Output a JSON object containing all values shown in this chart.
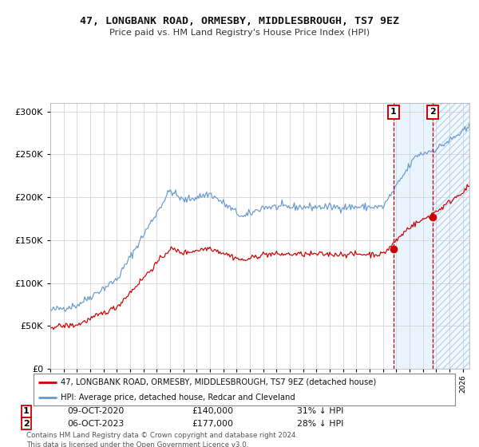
{
  "title": "47, LONGBANK ROAD, ORMESBY, MIDDLESBROUGH, TS7 9EZ",
  "subtitle": "Price paid vs. HM Land Registry's House Price Index (HPI)",
  "legend_line1": "47, LONGBANK ROAD, ORMESBY, MIDDLESBROUGH, TS7 9EZ (detached house)",
  "legend_line2": "HPI: Average price, detached house, Redcar and Cleveland",
  "footer": "Contains HM Land Registry data © Crown copyright and database right 2024.\nThis data is licensed under the Open Government Licence v3.0.",
  "transaction1_date": "09-OCT-2020",
  "transaction1_price": "£140,000",
  "transaction1_hpi": "31% ↓ HPI",
  "transaction2_date": "06-OCT-2023",
  "transaction2_price": "£177,000",
  "transaction2_hpi": "28% ↓ HPI",
  "marker1_x": 2020.78,
  "marker1_y_red": 140000,
  "marker2_x": 2023.76,
  "marker2_y_red": 177000,
  "red_color": "#cc0000",
  "blue_color": "#6699cc",
  "background_color": "#ffffff",
  "grid_color": "#cccccc",
  "ylim": [
    0,
    310000
  ],
  "xlim": [
    1995,
    2026.5
  ],
  "shade1_start": 2020.78,
  "shade1_end": 2023.76,
  "shade2_start": 2023.76,
  "shade2_end": 2026.5
}
